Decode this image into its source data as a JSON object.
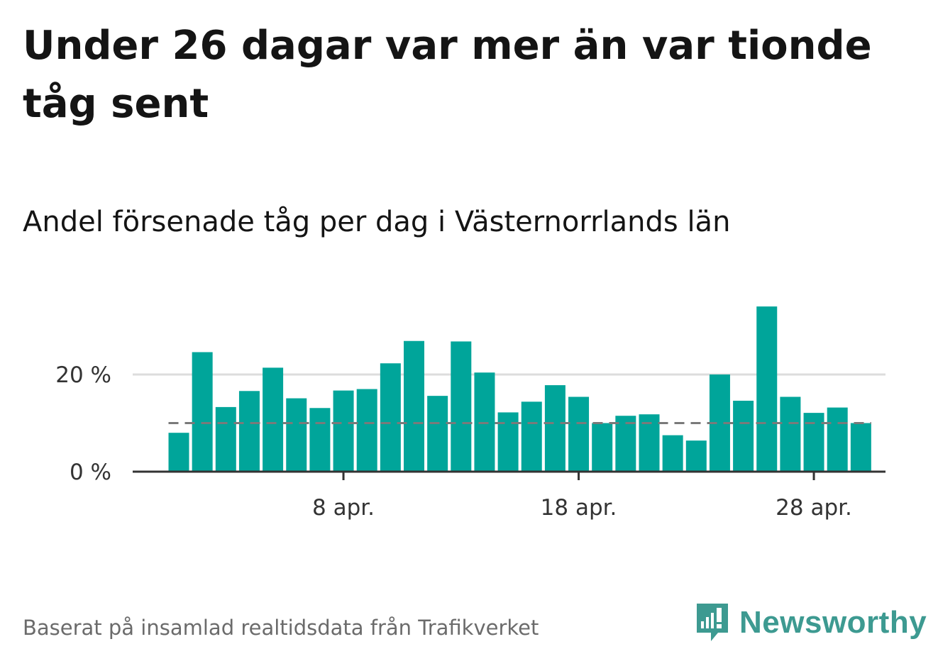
{
  "title": "Under 26 dagar var mer än var tionde tåg sent",
  "subtitle": "Andel försenade tåg per dag i Västernorrlands län",
  "source": "Baserat på insamlad realtidsdata från Trafikverket",
  "logo": {
    "name": "Newsworthy",
    "color": "#3d9a91"
  },
  "colors": {
    "bar": "#00a59a",
    "reference_line": "#7a7a7a",
    "gridline": "#dddddd",
    "axis": "#333333"
  },
  "chart_data": {
    "type": "bar",
    "unit": "%",
    "x": [
      "1 apr.",
      "2 apr.",
      "3 apr.",
      "4 apr.",
      "5 apr.",
      "6 apr.",
      "7 apr.",
      "8 apr.",
      "9 apr.",
      "10 apr.",
      "11 apr.",
      "12 apr.",
      "13 apr.",
      "14 apr.",
      "15 apr.",
      "16 apr.",
      "17 apr.",
      "18 apr.",
      "19 apr.",
      "20 apr.",
      "21 apr.",
      "22 apr.",
      "23 apr.",
      "24 apr.",
      "25 apr.",
      "26 apr.",
      "27 apr.",
      "28 apr.",
      "29 apr.",
      "30 apr."
    ],
    "values": [
      8.0,
      24.6,
      13.3,
      16.6,
      21.4,
      15.1,
      13.1,
      16.7,
      17.0,
      22.3,
      26.9,
      15.6,
      26.8,
      20.4,
      12.2,
      14.4,
      17.8,
      15.4,
      10.0,
      11.5,
      11.8,
      7.5,
      6.4,
      20.0,
      14.6,
      34.0,
      15.4,
      12.1,
      13.2,
      10.0
    ],
    "reference_line": {
      "value": 10,
      "style": "dashed",
      "from": "1 apr.",
      "to": "30 apr."
    },
    "yticks": [
      0,
      20
    ],
    "ytick_labels": [
      "0 %",
      "20 %"
    ],
    "xticks": [
      "8 apr.",
      "18 apr.",
      "28 apr."
    ],
    "ylim": [
      0,
      36
    ],
    "grid": "horizontal",
    "xlabel": "",
    "ylabel": ""
  }
}
